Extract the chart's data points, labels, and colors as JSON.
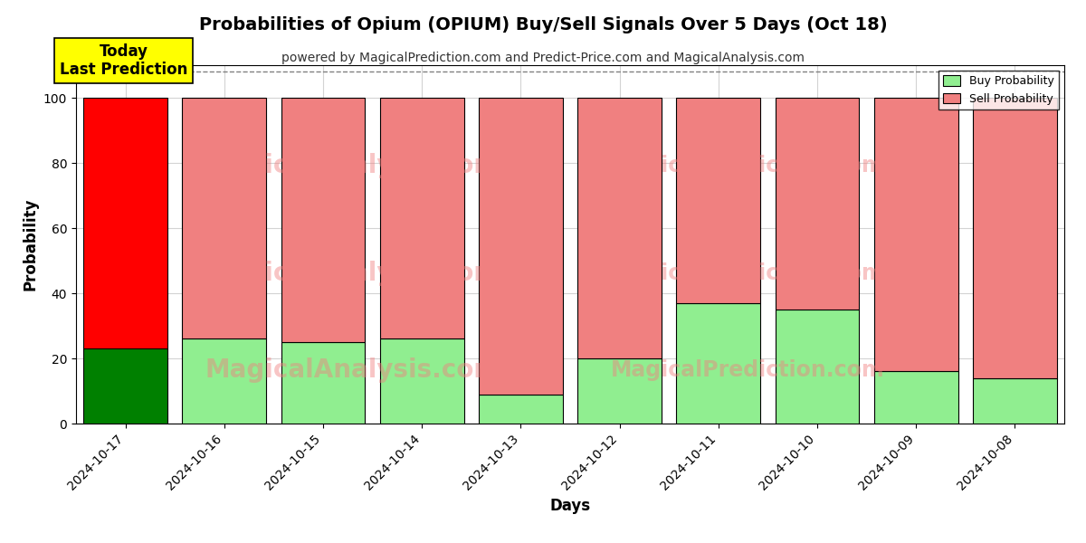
{
  "title": "Probabilities of Opium (OPIUM) Buy/Sell Signals Over 5 Days (Oct 18)",
  "subtitle": "powered by MagicalPrediction.com and Predict-Price.com and MagicalAnalysis.com",
  "xlabel": "Days",
  "ylabel": "Probability",
  "categories": [
    "2024-10-17",
    "2024-10-16",
    "2024-10-15",
    "2024-10-14",
    "2024-10-13",
    "2024-10-12",
    "2024-10-11",
    "2024-10-10",
    "2024-10-09",
    "2024-10-08"
  ],
  "buy_values": [
    23,
    26,
    25,
    26,
    9,
    20,
    37,
    35,
    16,
    14
  ],
  "sell_values": [
    77,
    74,
    75,
    74,
    91,
    80,
    63,
    65,
    84,
    86
  ],
  "today_index": 0,
  "buy_color_today": "#008000",
  "sell_color_today": "#ff0000",
  "buy_color_normal": "#90EE90",
  "sell_color_normal": "#F08080",
  "today_label_bg": "#ffff00",
  "today_label_text": "Today\nLast Prediction",
  "legend_buy": "Buy Probability",
  "legend_sell": "Sell Probability",
  "ylim": [
    0,
    110
  ],
  "yticks": [
    0,
    20,
    40,
    60,
    80,
    100
  ],
  "dashed_line_y": 108,
  "bar_width": 0.85,
  "edgecolor": "#000000",
  "title_fontsize": 14,
  "subtitle_fontsize": 10,
  "watermark_color": "#F08080",
  "watermark_alpha": 0.45
}
